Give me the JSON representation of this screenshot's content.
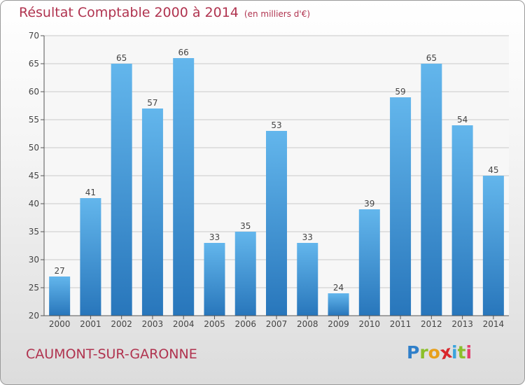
{
  "title": "Résultat Comptable 2000 à 2014",
  "subtitle": "(en milliers d'€)",
  "city": "CAUMONT-SUR-GARONNE",
  "logo": {
    "letters": [
      "P",
      "r",
      "o",
      "x",
      "i",
      "t",
      "i"
    ],
    "colors": [
      "#2f7fc9",
      "#8bbf2a",
      "#e8a01b",
      "#d9262b",
      "#3aa3dc",
      "#8bbf2a",
      "#e23f6c"
    ]
  },
  "colors": {
    "bar_top": "#63b6ec",
    "bar_bottom": "#2876bb",
    "text": "#b0334f",
    "grid": "#c8c8c8"
  },
  "chart_data": {
    "type": "bar",
    "title": "Résultat Comptable 2000 à 2014",
    "unit": "en milliers d'€",
    "categories": [
      "2000",
      "2001",
      "2002",
      "2003",
      "2004",
      "2005",
      "2006",
      "2007",
      "2008",
      "2009",
      "2010",
      "2011",
      "2012",
      "2013",
      "2014"
    ],
    "values": [
      27,
      41,
      65,
      57,
      66,
      33,
      35,
      53,
      33,
      24,
      39,
      59,
      65,
      54,
      45
    ],
    "ylim": [
      20,
      70
    ],
    "yticks": [
      20,
      25,
      30,
      35,
      40,
      45,
      50,
      55,
      60,
      65,
      70
    ],
    "grid": true,
    "xlabel": "",
    "ylabel": ""
  }
}
